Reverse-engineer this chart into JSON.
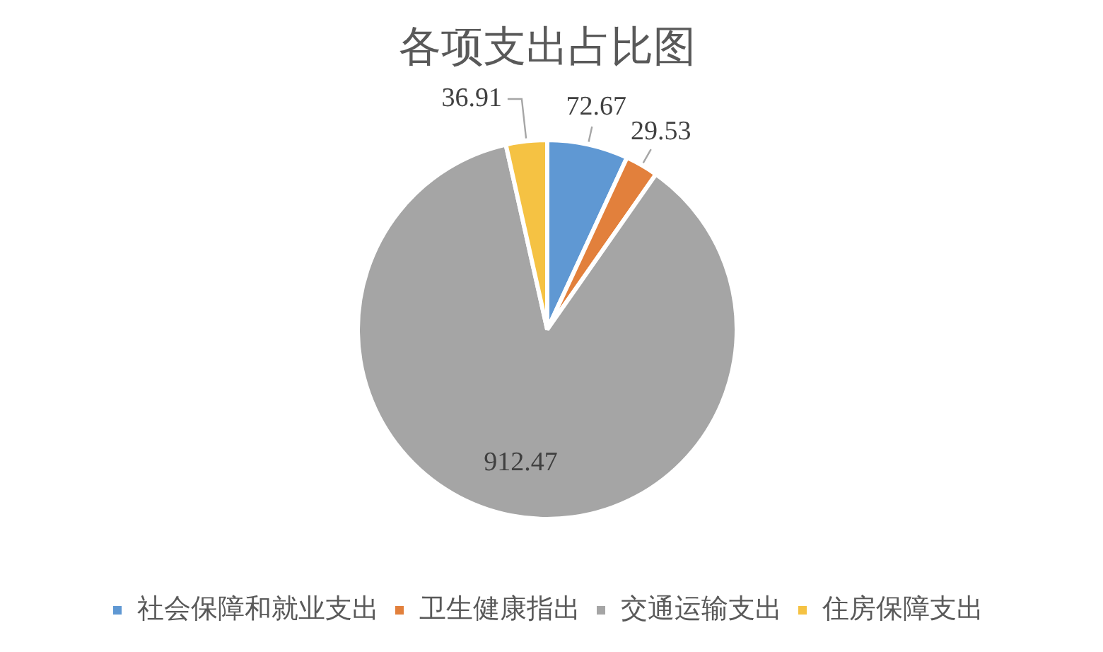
{
  "chart_data": {
    "type": "pie",
    "title": "各项支出占比图",
    "categories": [
      "社会保障和就业支出",
      "卫生健康指出",
      "交通运输支出",
      "住房保障支出"
    ],
    "values": [
      72.67,
      29.53,
      912.47,
      36.91
    ],
    "colors": [
      "#5f98d3",
      "#e2803c",
      "#a5a5a5",
      "#f5c243"
    ],
    "data_labels": true,
    "legend": "bottom"
  }
}
